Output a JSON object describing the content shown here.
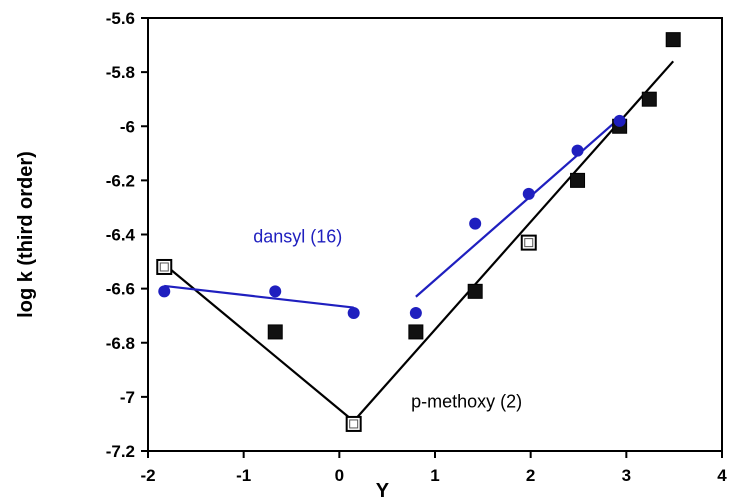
{
  "chart_data": {
    "type": "scatter",
    "xlabel": "Y",
    "ylabel": "log k (third order)",
    "xlim": [
      -2,
      4
    ],
    "ylim": [
      -7.2,
      -5.6
    ],
    "xticks": [
      -2,
      -1,
      0,
      1,
      2,
      3,
      4
    ],
    "yticks": [
      -5.6,
      -5.8,
      -6,
      -6.2,
      -6.4,
      -6.6,
      -6.8,
      -7,
      -7.2
    ],
    "xtick_labels": [
      "-2",
      "-1",
      "0",
      "1",
      "2",
      "3",
      "4"
    ],
    "ytick_labels": [
      "-5.6",
      "-5.8",
      "-6",
      "-6.2",
      "-6.4",
      "-6.6",
      "-6.8",
      "-7",
      "-7.2"
    ],
    "grid": false,
    "series": [
      {
        "name": "p-methoxy (2)",
        "color": "#000000",
        "marker": "square",
        "points": [
          {
            "x": -1.83,
            "y": -6.52,
            "open": true
          },
          {
            "x": -0.67,
            "y": -6.76,
            "open": false
          },
          {
            "x": 0.15,
            "y": -7.1,
            "open": true
          },
          {
            "x": 0.8,
            "y": -6.76,
            "open": false
          },
          {
            "x": 1.42,
            "y": -6.61,
            "open": false
          },
          {
            "x": 1.98,
            "y": -6.43,
            "open": true
          },
          {
            "x": 2.49,
            "y": -6.2,
            "open": false
          },
          {
            "x": 2.93,
            "y": -6.0,
            "open": false
          },
          {
            "x": 3.24,
            "y": -5.9,
            "open": false
          },
          {
            "x": 3.49,
            "y": -5.68,
            "open": false
          }
        ],
        "fit_lines": [
          {
            "x": [
              -1.83,
              0.15
            ],
            "y": [
              -6.51,
              -7.09
            ]
          },
          {
            "x": 0.15,
            "y2": -7.09,
            "x2": 3.49,
            "y_end": -5.76
          }
        ]
      },
      {
        "name": "dansyl (16)",
        "color": "#1f1fbf",
        "marker": "circle",
        "points": [
          {
            "x": -1.83,
            "y": -6.61
          },
          {
            "x": -0.67,
            "y": -6.61
          },
          {
            "x": 0.15,
            "y": -6.69
          },
          {
            "x": 0.8,
            "y": -6.69
          },
          {
            "x": 1.42,
            "y": -6.36
          },
          {
            "x": 1.98,
            "y": -6.25
          },
          {
            "x": 2.49,
            "y": -6.09
          },
          {
            "x": 2.93,
            "y": -5.98
          }
        ],
        "fit_lines": [
          {
            "x": [
              -1.83,
              0.15
            ],
            "y": [
              -6.59,
              -6.67
            ]
          },
          {
            "x": [
              0.8,
              2.93
            ],
            "y": [
              -6.63,
              -5.97
            ]
          }
        ]
      }
    ],
    "annotations": [
      {
        "text": "dansyl (16)",
        "x": -0.9,
        "y": -6.43,
        "color": "#1f1fbf"
      },
      {
        "text": "p-methoxy (2)",
        "x": 0.75,
        "y": -7.04,
        "color": "#000000"
      }
    ]
  }
}
